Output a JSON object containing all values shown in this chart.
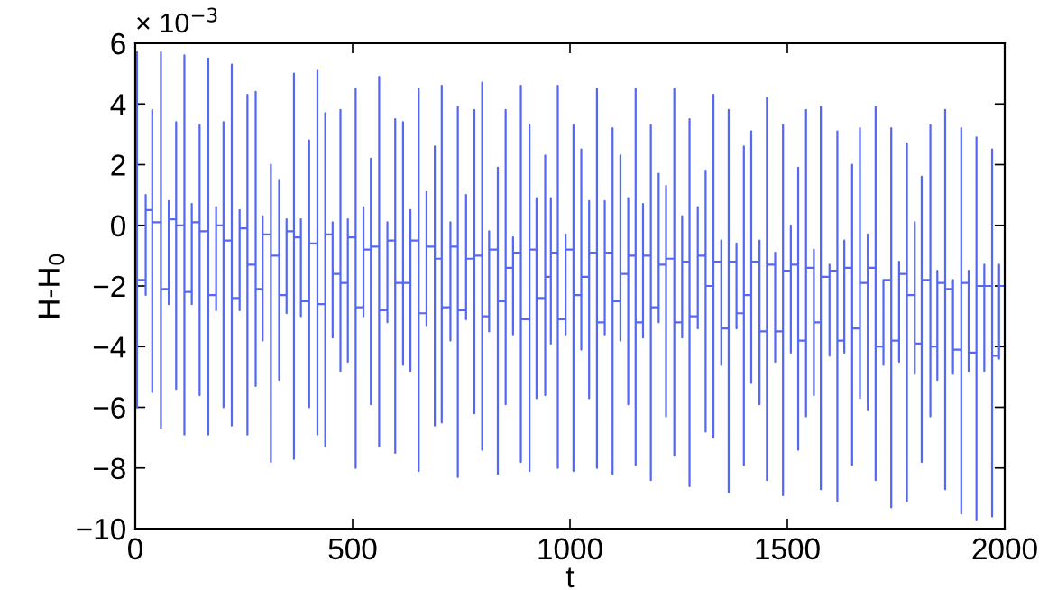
{
  "chart_data": {
    "type": "line",
    "xlabel": "t",
    "ylabel": "H-H$_{0}$",
    "annotations": [
      "× 10$^{−3}$"
    ],
    "xlim": [
      0,
      2000
    ],
    "xticks": [
      0,
      500,
      1000,
      1500,
      2000
    ],
    "ylim": [
      -10,
      6
    ],
    "yticks": [
      {
        "value": -10,
        "label": "−10"
      },
      {
        "value": -8,
        "label": "−8"
      },
      {
        "value": -6,
        "label": "−6"
      },
      {
        "value": -4,
        "label": "−4"
      },
      {
        "value": -2,
        "label": "−2"
      },
      0,
      2,
      4,
      6
    ],
    "grid": false,
    "marker": "none",
    "line_style": "solid",
    "series": [
      {
        "color": "#5468f4",
        "x": [
          4,
          4,
          4,
          24,
          24,
          24,
          24,
          39,
          39,
          39,
          39,
          59,
          59,
          59,
          59,
          77,
          77,
          77,
          77,
          94,
          94,
          94,
          94,
          113,
          113,
          113,
          113,
          130,
          130,
          130,
          130,
          148,
          148,
          148,
          148,
          168,
          168,
          168,
          168,
          186,
          186,
          186,
          186,
          203,
          203,
          203,
          203,
          222,
          222,
          222,
          222,
          240,
          240,
          240,
          240,
          258,
          258,
          258,
          258,
          277,
          277,
          277,
          277,
          293,
          293,
          293,
          293,
          312,
          312,
          312,
          312,
          331,
          331,
          331,
          331,
          348,
          348,
          348,
          348,
          365,
          365,
          365,
          365,
          381,
          381,
          381,
          381,
          400,
          400,
          400,
          400,
          419,
          419,
          419,
          419,
          437,
          437,
          437,
          437,
          454,
          454,
          454,
          454,
          472,
          472,
          472,
          472,
          489,
          489,
          489,
          489,
          507,
          507,
          507,
          507,
          525,
          525,
          525,
          525,
          542,
          542,
          542,
          542,
          561,
          561,
          561,
          561,
          580,
          580,
          580,
          580,
          598,
          598,
          598,
          598,
          616,
          616,
          616,
          616,
          633,
          633,
          633,
          633,
          652,
          652,
          652,
          652,
          670,
          670,
          670,
          670,
          689,
          689,
          689,
          689,
          705,
          705,
          705,
          705,
          725,
          725,
          725,
          725,
          742,
          742,
          742,
          742,
          761,
          761,
          761,
          761,
          780,
          780,
          780,
          780,
          798,
          798,
          798,
          798,
          814,
          814,
          814,
          814,
          834,
          834,
          834,
          834,
          852,
          852,
          852,
          852,
          869,
          869,
          869,
          869,
          887,
          887,
          887,
          887,
          907,
          907,
          907,
          907,
          923,
          923,
          923,
          923,
          943,
          943,
          943,
          943,
          956,
          956,
          956,
          956,
          972,
          972,
          972,
          972,
          990,
          990,
          990,
          990,
          1008,
          1008,
          1008,
          1008,
          1026,
          1026,
          1026,
          1026,
          1044,
          1044,
          1044,
          1044,
          1062,
          1062,
          1062,
          1062,
          1080,
          1080,
          1080,
          1080,
          1098,
          1098,
          1098,
          1098,
          1116,
          1116,
          1116,
          1116,
          1134,
          1134,
          1134,
          1134,
          1151,
          1151,
          1151,
          1151,
          1168,
          1168,
          1168,
          1168,
          1186,
          1186,
          1186,
          1186,
          1204,
          1204,
          1204,
          1204,
          1221,
          1221,
          1221,
          1221,
          1240,
          1240,
          1240,
          1240,
          1258,
          1258,
          1258,
          1258,
          1275,
          1275,
          1275,
          1275,
          1294,
          1294,
          1294,
          1294,
          1312,
          1312,
          1312,
          1312,
          1330,
          1330,
          1330,
          1330,
          1348,
          1348,
          1348,
          1348,
          1365,
          1365,
          1365,
          1365,
          1383,
          1383,
          1383,
          1383,
          1400,
          1400,
          1400,
          1400,
          1417,
          1417,
          1417,
          1417,
          1436,
          1436,
          1436,
          1436,
          1453,
          1453,
          1453,
          1453,
          1472,
          1472,
          1472,
          1472,
          1490,
          1490,
          1490,
          1490,
          1508,
          1508,
          1508,
          1508,
          1525,
          1525,
          1525,
          1525,
          1543,
          1543,
          1543,
          1543,
          1561,
          1561,
          1561,
          1561,
          1577,
          1577,
          1577,
          1577,
          1597,
          1597,
          1597,
          1597,
          1615,
          1615,
          1615,
          1615,
          1631,
          1631,
          1631,
          1631,
          1649,
          1649,
          1649,
          1649,
          1667,
          1667,
          1667,
          1667,
          1685,
          1685,
          1685,
          1685,
          1703,
          1703,
          1703,
          1703,
          1721,
          1721,
          1721,
          1721,
          1739,
          1739,
          1739,
          1739,
          1757,
          1757,
          1757,
          1757,
          1775,
          1775,
          1775,
          1775,
          1793,
          1793,
          1793,
          1793,
          1809,
          1809,
          1809,
          1809,
          1829,
          1829,
          1829,
          1829,
          1845,
          1845,
          1845,
          1845,
          1863,
          1863,
          1863,
          1863,
          1881,
          1881,
          1881,
          1881,
          1900,
          1900,
          1900,
          1900,
          1917,
          1917,
          1917,
          1917,
          1935,
          1935,
          1935,
          1935,
          1953,
          1953,
          1953,
          1953,
          1971,
          1971,
          1971,
          1971,
          1987,
          1987,
          1987,
          1987,
          2000
        ],
        "values": [
          5.7,
          -6.0,
          -1.8,
          -1.8,
          1.0,
          -2.3,
          0.5,
          0.5,
          3.8,
          -5.5,
          0.1,
          0.1,
          5.7,
          -6.7,
          -2.1,
          -2.1,
          0.8,
          -2.6,
          0.2,
          0.2,
          3.4,
          -5.4,
          0.0,
          0.0,
          5.6,
          -6.9,
          -2.2,
          -2.2,
          0.7,
          -2.6,
          0.1,
          0.1,
          3.3,
          -5.6,
          -0.2,
          -0.2,
          5.5,
          -6.9,
          -2.3,
          -2.3,
          0.6,
          -2.8,
          0.0,
          0.0,
          3.4,
          -6.0,
          -0.5,
          -0.5,
          5.3,
          -6.6,
          -2.4,
          -2.4,
          0.5,
          -2.8,
          -0.1,
          -0.1,
          4.3,
          -6.9,
          -1.3,
          -1.3,
          4.4,
          -5.3,
          -2.1,
          -2.1,
          0.3,
          -3.8,
          -0.3,
          -0.3,
          2.0,
          -7.8,
          -1.0,
          -1.0,
          1.5,
          -5.1,
          -2.3,
          -2.3,
          0.2,
          -2.9,
          -0.2,
          -0.2,
          5.0,
          -7.7,
          -0.4,
          -0.4,
          0.2,
          -3.0,
          -2.5,
          -2.5,
          2.8,
          -6.0,
          -0.6,
          -0.6,
          5.1,
          -6.9,
          -2.6,
          -2.6,
          3.7,
          -7.3,
          -0.3,
          -0.3,
          0.1,
          -3.7,
          -1.6,
          -1.6,
          3.8,
          -4.8,
          -1.9,
          -1.9,
          0.2,
          -4.5,
          -0.4,
          -0.4,
          4.5,
          -8.0,
          -2.7,
          -2.7,
          0.6,
          -3.0,
          -0.8,
          -0.8,
          2.2,
          -5.9,
          -0.7,
          -0.7,
          4.9,
          -7.3,
          -2.8,
          -2.8,
          0.1,
          -3.2,
          -0.5,
          -0.5,
          3.5,
          -7.5,
          -1.9,
          -1.9,
          3.4,
          -4.6,
          -1.9,
          -1.9,
          0.5,
          -4.8,
          -0.5,
          -0.5,
          4.5,
          -8.1,
          -2.9,
          -2.9,
          1.1,
          -3.3,
          -0.7,
          -0.7,
          2.6,
          -6.6,
          -1.1,
          -1.1,
          4.6,
          -6.5,
          -2.7,
          -2.7,
          0.1,
          -3.8,
          -0.7,
          -0.7,
          3.9,
          -8.3,
          -2.8,
          -2.8,
          1.0,
          -3.1,
          -1.1,
          -1.1,
          3.8,
          -6.2,
          -1.0,
          -1.0,
          4.7,
          -7.4,
          -3.0,
          -3.0,
          -0.2,
          -3.5,
          -0.8,
          -0.8,
          1.9,
          -8.2,
          -2.5,
          -2.5,
          3.8,
          -5.9,
          -1.4,
          -1.4,
          -0.4,
          -3.6,
          -0.9,
          -0.9,
          4.6,
          -7.8,
          -3.1,
          -3.1,
          3.3,
          -8.1,
          -0.8,
          -0.8,
          0.9,
          -5.7,
          -2.4,
          -2.4,
          2.3,
          -5.6,
          -1.7,
          -1.7,
          0.9,
          -3.9,
          -0.9,
          -0.9,
          4.6,
          -8.0,
          -3.1,
          -3.1,
          -0.3,
          -3.6,
          -0.8,
          -0.8,
          3.3,
          -8.1,
          -2.3,
          -2.3,
          2.5,
          -4.1,
          -1.7,
          -1.7,
          0.8,
          -5.7,
          -0.9,
          -0.9,
          4.5,
          -8.0,
          -3.2,
          -3.2,
          0.8,
          -3.6,
          -0.9,
          -0.9,
          3.2,
          -8.2,
          -2.5,
          -2.5,
          2.3,
          -3.8,
          -1.6,
          -1.6,
          0.9,
          -5.9,
          -1.0,
          -1.0,
          4.5,
          -7.9,
          -3.2,
          -3.2,
          0.7,
          -3.7,
          -1.0,
          -1.0,
          3.3,
          -8.4,
          -2.7,
          -2.7,
          1.7,
          -3.2,
          -1.3,
          -1.3,
          1.3,
          -6.3,
          -1.1,
          -1.1,
          4.5,
          -7.6,
          -3.2,
          -3.2,
          0.3,
          -3.7,
          -1.2,
          -1.2,
          3.5,
          -8.6,
          -3.0,
          -3.0,
          0.6,
          -3.4,
          -1.0,
          -1.0,
          1.8,
          -6.8,
          -2.0,
          -2.0,
          4.3,
          -7.0,
          -1.2,
          -1.2,
          -0.5,
          -4.6,
          -3.4,
          -3.4,
          3.8,
          -8.8,
          -1.2,
          -1.2,
          -0.6,
          -3.4,
          -2.9,
          -2.9,
          2.6,
          -7.9,
          -2.3,
          -2.3,
          3.1,
          -5.2,
          -1.2,
          -1.2,
          -0.5,
          -5.9,
          -3.5,
          -3.5,
          4.2,
          -8.4,
          -1.3,
          -1.3,
          -0.9,
          -4.5,
          -3.5,
          -3.5,
          3.3,
          -8.9,
          -1.5,
          -1.5,
          0.0,
          -4.2,
          -1.3,
          -1.3,
          1.9,
          -7.4,
          -3.8,
          -3.8,
          3.8,
          -6.3,
          -1.4,
          -1.4,
          -0.8,
          -5.6,
          -3.2,
          -3.2,
          3.9,
          -8.7,
          -1.7,
          -1.7,
          -1.3,
          -4.3,
          -1.5,
          -1.5,
          3.1,
          -9.1,
          -3.8,
          -3.8,
          -0.5,
          -4.2,
          -1.4,
          -1.4,
          2.0,
          -7.9,
          -3.4,
          -3.4,
          3.2,
          -5.7,
          -1.9,
          -1.9,
          -0.3,
          -6.1,
          -1.4,
          -1.4,
          3.9,
          -8.4,
          -4.0,
          -4.0,
          -1.8,
          -4.6,
          -1.8,
          -1.8,
          3.2,
          -9.3,
          -3.8,
          -3.8,
          -1.2,
          -4.5,
          -1.6,
          -1.6,
          2.7,
          -9.1,
          -2.3,
          -2.3,
          0.1,
          -4.9,
          -3.9,
          -3.9,
          1.6,
          -7.8,
          -1.8,
          -1.8,
          3.3,
          -6.3,
          -4.0,
          -4.0,
          -1.5,
          -5.1,
          -1.9,
          -1.9,
          3.8,
          -8.7,
          -2.1,
          -2.1,
          -1.8,
          -4.9,
          -4.1,
          -4.1,
          3.2,
          -9.5,
          -1.9,
          -1.9,
          -1.5,
          -4.8,
          -4.2,
          -4.2,
          2.9,
          -9.7,
          -2.0,
          -2.0,
          -1.3,
          -4.8,
          -2.0,
          -2.0,
          2.5,
          -9.6,
          -4.3,
          -4.3,
          -1.3,
          -4.4,
          -2.0,
          -2.0
        ]
      }
    ]
  }
}
